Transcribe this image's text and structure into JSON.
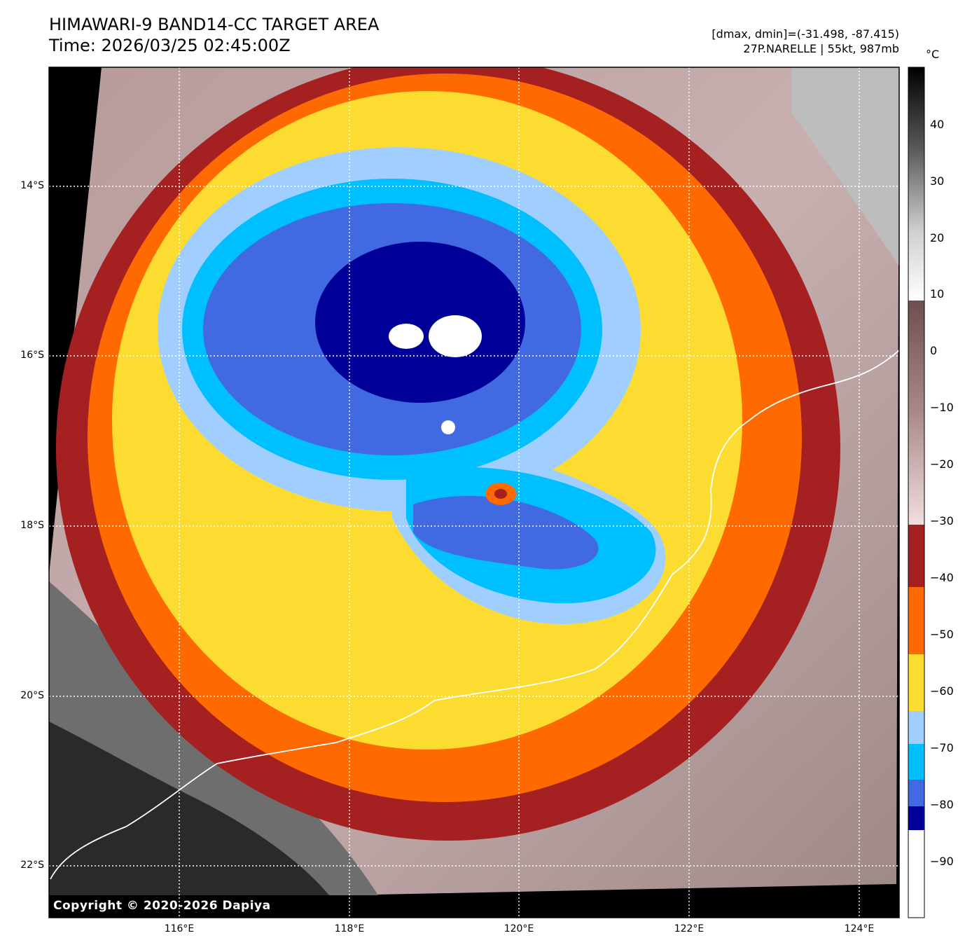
{
  "header": {
    "title_line1": "HIMAWARI-9 BAND14-CC TARGET AREA",
    "title_line2": "Time: 2026/03/25 02:45:00Z",
    "dmax_dmin": "[dmax, dmin]=(-31.498, -87.415)",
    "storm_info": "27P.NARELLE | 55kt, 987mb"
  },
  "colorbar": {
    "unit": "°C",
    "tick_labels": [
      "40",
      "30",
      "20",
      "10",
      "0",
      "−10",
      "−20",
      "−30",
      "−40",
      "−50",
      "−60",
      "−70",
      "−80",
      "−90"
    ],
    "bands": [
      {
        "color": "#000f0a",
        "label": "black-gray"
      },
      {
        "color": "#8b0000"
      }
    ]
  },
  "map": {
    "lat_labels": [
      "14°S",
      "16°S",
      "18°S",
      "20°S",
      "22°S"
    ],
    "lon_labels": [
      "116°E",
      "118°E",
      "120°E",
      "122°E",
      "124°E"
    ],
    "copyright": "Copyright © 2020-2026 Dapiya"
  },
  "colors": {
    "deep_blue": "#000099",
    "royal_blue": "#4169e1",
    "cyan": "#00bfff",
    "light_blue": "#a0cfff",
    "yellow": "#fddc32",
    "orange": "#ff6a00",
    "dark_red": "#a52121",
    "pink": "#f0d8d8",
    "coastline": "#ffffff"
  }
}
